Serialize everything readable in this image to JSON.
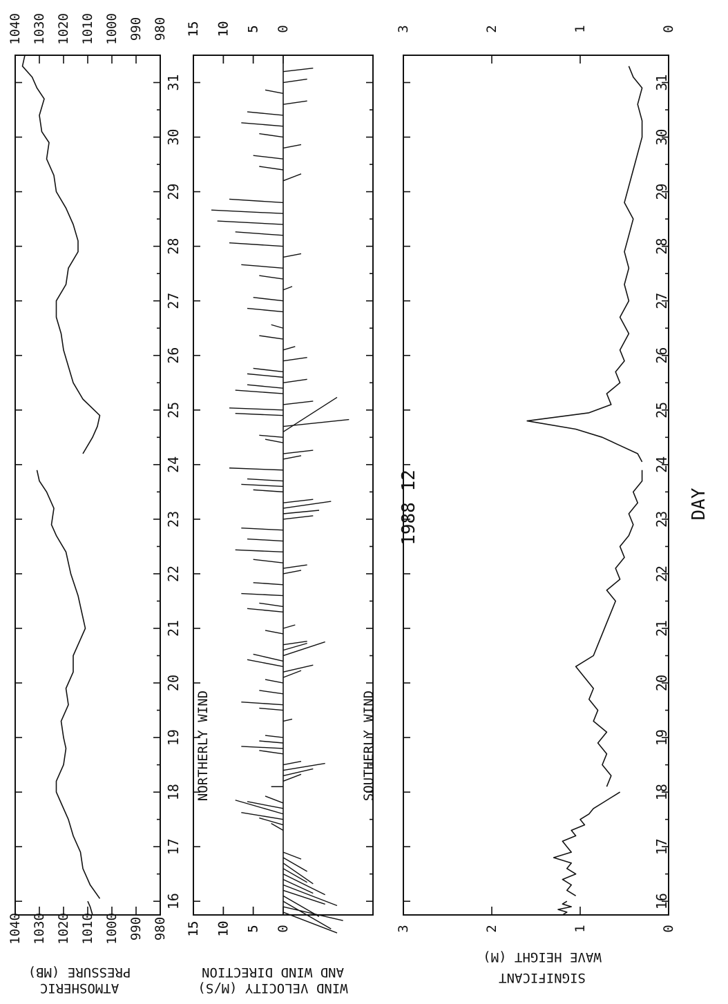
{
  "meta": {
    "title": "1988  12",
    "xlabel": "DAY"
  },
  "panels": {
    "pressure": {
      "label_line1": "ATMOSHERIC",
      "label_line2": "PRESSURE  (MB)"
    },
    "wind": {
      "label_line1": "WIND VELOCITY  (M/S)",
      "label_line2": "AND WIND DIRECTION",
      "north_label": "NORTHERLY WIND",
      "south_label": "SOUTHERLY WIND"
    },
    "wave": {
      "label_line1": "SIGNIFICANT",
      "label_line2": "WAVE HEIGHT  (M)"
    }
  },
  "chart_data": [
    {
      "type": "line",
      "id": "pressure",
      "ylabel": "ATMOSHERIC PRESSURE (MB)",
      "xlabel": "DAY",
      "xlim": [
        15.75,
        31.5
      ],
      "ylim": [
        980,
        1040
      ],
      "xticks": [
        "16",
        "17",
        "18",
        "19",
        "20",
        "21",
        "22",
        "23",
        "24",
        "25",
        "26",
        "27",
        "28",
        "29",
        "30",
        "31"
      ],
      "yticks": [
        "980",
        "990",
        "1000",
        "1010",
        "1020",
        "1030",
        "1040"
      ],
      "segments": [
        {
          "x": [
            15.75,
            15.9,
            16.0
          ],
          "y": [
            1008,
            1009,
            1010
          ]
        },
        {
          "x": [
            16.05,
            16.3,
            16.6,
            16.9,
            17.2,
            17.5,
            17.8,
            18.0,
            18.2,
            18.5,
            18.8,
            19.0,
            19.3,
            19.6,
            19.9,
            20.2,
            20.5,
            20.8,
            21.0,
            21.2,
            21.6,
            22.0,
            22.4,
            22.7,
            22.9,
            23.2,
            23.5,
            23.7,
            23.9
          ],
          "y": [
            1005,
            1009,
            1012,
            1013,
            1016,
            1018,
            1021,
            1023,
            1023,
            1020,
            1019,
            1020,
            1021,
            1018,
            1019,
            1016,
            1016,
            1013,
            1011,
            1012,
            1014,
            1017,
            1019,
            1023,
            1025,
            1024,
            1027,
            1030,
            1031
          ]
        },
        {
          "x": [
            24.2,
            24.5,
            24.7,
            24.9,
            25.2,
            25.5,
            25.8,
            26.1,
            26.4,
            26.7,
            27.0,
            27.3,
            27.6,
            27.9,
            28.1,
            28.4,
            28.7,
            29.0,
            29.3,
            29.6,
            29.9,
            30.1,
            30.4,
            30.7,
            30.9,
            31.1,
            31.3,
            31.5
          ],
          "y": [
            1012,
            1008,
            1006,
            1005,
            1012,
            1016,
            1018,
            1020,
            1021,
            1023,
            1023,
            1019,
            1018,
            1014,
            1014,
            1016,
            1019,
            1023,
            1024,
            1027,
            1026,
            1029,
            1030,
            1028,
            1031,
            1033,
            1037,
            1036
          ]
        }
      ]
    },
    {
      "type": "stick",
      "id": "wind",
      "ylabel": "WIND VELOCITY (M/S) AND WIND DIRECTION",
      "xlim": [
        15.75,
        31.5
      ],
      "ylim": [
        -15,
        15
      ],
      "yticks": [
        "15",
        "10",
        "5",
        "0",
        "5",
        "10",
        "15"
      ],
      "note": "stick vectors: u = eastward (days axis scaled), v = northward component",
      "sticks": [
        [
          15.8,
          -3,
          -9
        ],
        [
          15.9,
          -2,
          -10
        ],
        [
          16.0,
          -4,
          -8
        ],
        [
          16.1,
          -3,
          -6
        ],
        [
          16.2,
          -2,
          -7
        ],
        [
          16.3,
          -3,
          -9
        ],
        [
          16.4,
          -2,
          -5
        ],
        [
          16.5,
          -3,
          -7
        ],
        [
          16.6,
          -2,
          -4
        ],
        [
          16.7,
          -3,
          -5
        ],
        [
          16.8,
          -2,
          -4
        ],
        [
          16.9,
          -1,
          -3
        ],
        [
          17.3,
          1,
          2
        ],
        [
          17.4,
          1,
          4
        ],
        [
          17.5,
          1,
          7
        ],
        [
          17.6,
          2,
          8
        ],
        [
          17.7,
          1,
          6
        ],
        [
          17.8,
          1,
          3
        ],
        [
          18.1,
          0,
          2
        ],
        [
          18.2,
          1,
          -3
        ],
        [
          18.3,
          1,
          -5
        ],
        [
          18.4,
          1,
          -7
        ],
        [
          18.5,
          0.5,
          -3
        ],
        [
          18.7,
          0.5,
          4
        ],
        [
          18.8,
          0.3,
          7
        ],
        [
          18.9,
          0.3,
          4
        ],
        [
          19.0,
          0.3,
          3
        ],
        [
          19.3,
          0.3,
          -1.5
        ],
        [
          19.5,
          0.3,
          4
        ],
        [
          19.6,
          0.4,
          7
        ],
        [
          19.8,
          0.5,
          4
        ],
        [
          20.0,
          0.5,
          3
        ],
        [
          20.1,
          1,
          -3
        ],
        [
          20.2,
          1,
          -5
        ],
        [
          20.3,
          1,
          6
        ],
        [
          20.4,
          1,
          5
        ],
        [
          20.5,
          2,
          -7
        ],
        [
          20.6,
          1,
          -4
        ],
        [
          20.7,
          0.5,
          -4
        ],
        [
          20.9,
          0.5,
          3
        ],
        [
          21.0,
          0.5,
          -2
        ],
        [
          21.3,
          0.5,
          6
        ],
        [
          21.4,
          0.5,
          4
        ],
        [
          21.6,
          0.3,
          7
        ],
        [
          21.8,
          0.3,
          5
        ],
        [
          22.0,
          0.5,
          -3
        ],
        [
          22.1,
          0.5,
          -4
        ],
        [
          22.2,
          0.5,
          5
        ],
        [
          22.4,
          0.3,
          8
        ],
        [
          22.6,
          0.3,
          6
        ],
        [
          22.8,
          0.3,
          7
        ],
        [
          23.0,
          0.5,
          -5
        ],
        [
          23.1,
          0.5,
          -6
        ],
        [
          23.2,
          1,
          -8
        ],
        [
          23.3,
          0.5,
          -5
        ],
        [
          23.5,
          0.3,
          5
        ],
        [
          23.6,
          0.3,
          7
        ],
        [
          23.7,
          0.3,
          6
        ],
        [
          23.9,
          0.3,
          9
        ],
        [
          24.1,
          0.5,
          -3
        ],
        [
          24.2,
          0.5,
          -5
        ],
        [
          24.4,
          0.5,
          3
        ],
        [
          24.5,
          0.3,
          4
        ],
        [
          24.6,
          5,
          -9
        ],
        [
          24.7,
          1,
          -11
        ],
        [
          24.9,
          0.3,
          8
        ],
        [
          25.0,
          0.3,
          9
        ],
        [
          25.1,
          0.5,
          -5
        ],
        [
          25.3,
          0.5,
          8
        ],
        [
          25.4,
          0.5,
          6
        ],
        [
          25.5,
          0.5,
          -4
        ],
        [
          25.6,
          0.5,
          6
        ],
        [
          25.7,
          0.5,
          5
        ],
        [
          25.9,
          0.5,
          -4
        ],
        [
          26.1,
          0.5,
          -2
        ],
        [
          26.3,
          0.5,
          4
        ],
        [
          26.5,
          0.5,
          2
        ],
        [
          26.8,
          0.5,
          6
        ],
        [
          27.0,
          0.5,
          5
        ],
        [
          27.2,
          0.5,
          -1.5
        ],
        [
          27.4,
          0.5,
          4
        ],
        [
          27.6,
          0.5,
          7
        ],
        [
          27.8,
          0.5,
          -3
        ],
        [
          28.0,
          0.5,
          9
        ],
        [
          28.2,
          0.5,
          8
        ],
        [
          28.4,
          0.5,
          11
        ],
        [
          28.6,
          0.5,
          12
        ],
        [
          28.8,
          0.5,
          9
        ],
        [
          29.2,
          1,
          -3
        ],
        [
          29.4,
          0.5,
          4
        ],
        [
          29.6,
          0.5,
          5
        ],
        [
          29.8,
          0.5,
          -3
        ],
        [
          30.0,
          0.5,
          4
        ],
        [
          30.2,
          0.5,
          7
        ],
        [
          30.4,
          0.5,
          6
        ],
        [
          30.6,
          0.5,
          -4
        ],
        [
          30.8,
          0.5,
          3
        ],
        [
          31.0,
          0.5,
          -4
        ],
        [
          31.2,
          0.5,
          -5
        ]
      ]
    },
    {
      "type": "line",
      "id": "wave",
      "ylabel": "SIGNIFICANT WAVE HEIGHT (M)",
      "xlim": [
        15.75,
        31.5
      ],
      "ylim": [
        0,
        3
      ],
      "yticks": [
        "0",
        "1",
        "2",
        "3"
      ],
      "segments": [
        {
          "x": [
            15.75,
            15.8,
            15.85,
            15.9,
            15.95,
            16.0
          ],
          "y": [
            1.2,
            1.15,
            1.25,
            1.1,
            1.2,
            1.15
          ]
        },
        {
          "x": [
            16.1,
            16.2,
            16.3,
            16.4,
            16.5,
            16.6,
            16.7,
            16.8,
            16.9,
            17.0,
            17.1,
            17.2,
            17.3,
            17.4,
            17.5,
            17.6,
            17.7,
            17.8,
            17.9,
            18.0
          ],
          "y": [
            1.05,
            1.15,
            1.1,
            1.2,
            1.05,
            1.15,
            1.1,
            1.3,
            1.1,
            1.15,
            1.2,
            1.05,
            1.1,
            0.95,
            1.0,
            0.9,
            0.85,
            0.75,
            0.65,
            0.55
          ]
        },
        {
          "x": [
            18.1,
            18.3,
            18.5,
            18.7,
            18.9,
            19.1,
            19.3,
            19.5,
            19.7,
            19.9,
            20.1,
            20.3,
            20.5,
            20.7,
            20.9,
            21.1,
            21.3,
            21.5,
            21.7,
            21.9,
            22.1,
            22.3,
            22.5,
            22.7,
            22.9,
            23.1,
            23.3,
            23.5,
            23.7,
            23.9
          ],
          "y": [
            0.7,
            0.65,
            0.75,
            0.7,
            0.8,
            0.7,
            0.85,
            0.8,
            0.9,
            0.85,
            0.95,
            1.05,
            0.85,
            0.8,
            0.75,
            0.7,
            0.65,
            0.6,
            0.7,
            0.55,
            0.6,
            0.5,
            0.55,
            0.45,
            0.4,
            0.45,
            0.35,
            0.4,
            0.3,
            0.3
          ]
        },
        {
          "x": [
            24.05,
            24.2,
            24.35,
            24.5,
            24.65,
            24.8,
            24.95,
            25.1,
            25.3,
            25.5,
            25.7,
            25.9,
            26.1,
            26.4,
            26.7,
            27.0,
            27.3,
            27.6,
            27.9,
            28.2,
            28.5,
            28.8,
            29.1,
            29.4,
            29.7,
            30.0,
            30.3,
            30.6,
            30.9,
            31.1,
            31.3
          ],
          "y": [
            0.3,
            0.35,
            0.55,
            0.75,
            1.05,
            1.6,
            0.9,
            0.65,
            0.7,
            0.55,
            0.6,
            0.5,
            0.55,
            0.45,
            0.55,
            0.45,
            0.5,
            0.45,
            0.5,
            0.45,
            0.4,
            0.5,
            0.45,
            0.4,
            0.35,
            0.3,
            0.3,
            0.35,
            0.3,
            0.4,
            0.45
          ]
        }
      ]
    }
  ]
}
